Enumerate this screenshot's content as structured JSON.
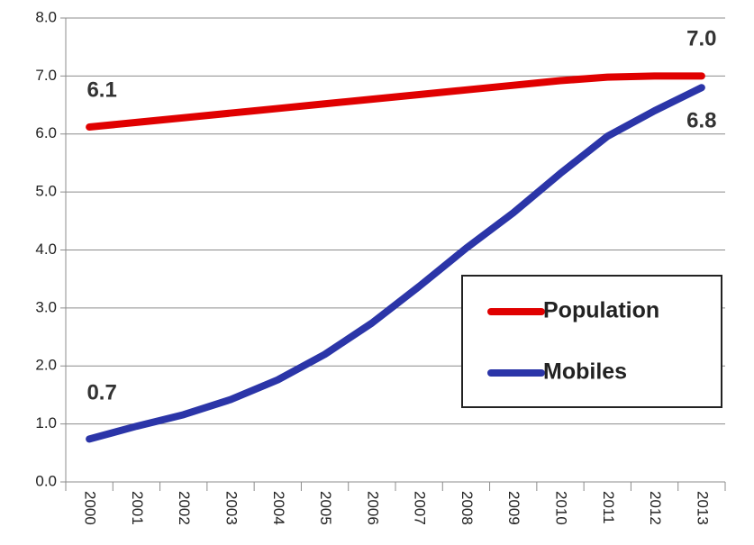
{
  "chart_data": {
    "type": "line",
    "categories": [
      "2000",
      "2001",
      "2002",
      "2003",
      "2004",
      "2005",
      "2006",
      "2007",
      "2008",
      "2009",
      "2010",
      "2011",
      "2012",
      "2013"
    ],
    "series": [
      {
        "name": "Population",
        "color": "#e00000",
        "values": [
          6.12,
          6.2,
          6.28,
          6.36,
          6.44,
          6.52,
          6.6,
          6.68,
          6.76,
          6.84,
          6.92,
          6.98,
          7.0,
          7.0
        ],
        "value_labels": [
          "6.1",
          null,
          null,
          null,
          null,
          null,
          null,
          null,
          null,
          null,
          null,
          null,
          null,
          "7.0"
        ]
      },
      {
        "name": "Mobiles",
        "color": "#2b35a8",
        "values": [
          0.74,
          0.96,
          1.16,
          1.42,
          1.76,
          2.2,
          2.74,
          3.37,
          4.03,
          4.64,
          5.32,
          5.96,
          6.4,
          6.8
        ],
        "value_labels": [
          "0.7",
          null,
          null,
          null,
          null,
          null,
          null,
          null,
          null,
          null,
          null,
          null,
          null,
          "6.8"
        ]
      }
    ],
    "ylim": [
      0,
      8
    ],
    "yticks": [
      {
        "value": 0,
        "label": "0.0"
      },
      {
        "value": 1,
        "label": "1.0"
      },
      {
        "value": 2,
        "label": "2.0"
      },
      {
        "value": 3,
        "label": "3.0"
      },
      {
        "value": 4,
        "label": "4.0"
      },
      {
        "value": 5,
        "label": "5.0"
      },
      {
        "value": 6,
        "label": "6.0"
      },
      {
        "value": 7,
        "label": "7.0"
      },
      {
        "value": 8,
        "label": "8.0"
      }
    ],
    "grid": true,
    "legend": "right"
  }
}
